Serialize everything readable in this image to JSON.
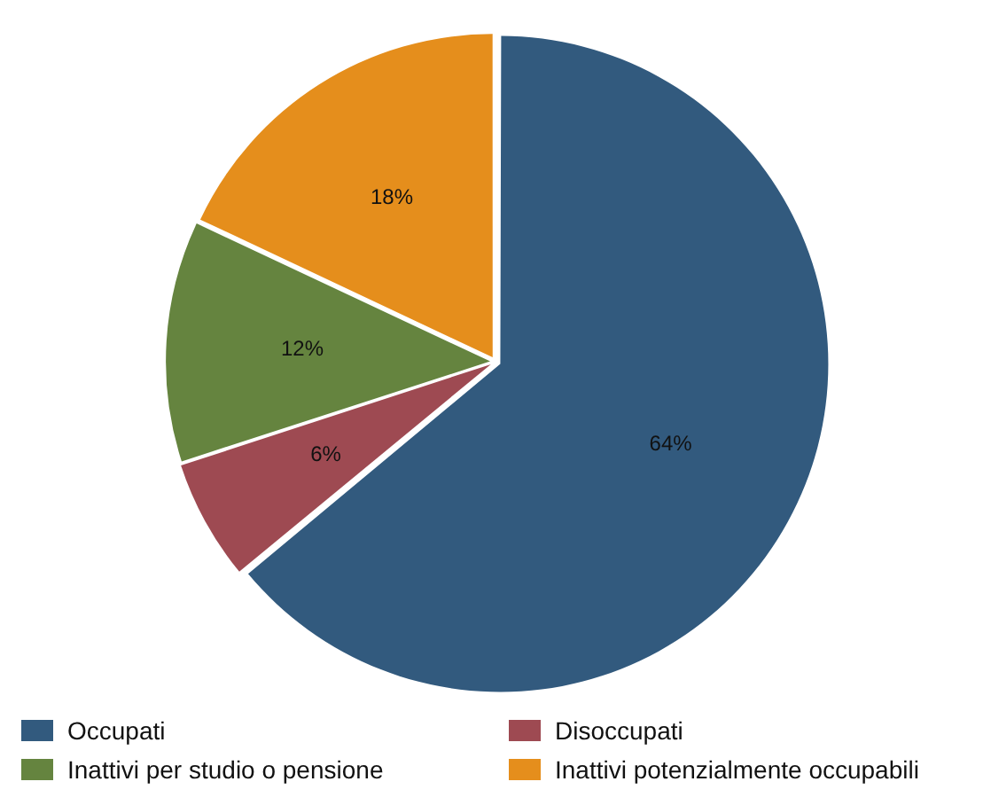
{
  "chart_data": {
    "type": "pie",
    "categories": [
      "Occupati",
      "Disoccupati",
      "Inattivi per studio o pensione",
      "Inattivi potenzialmente occupabili"
    ],
    "values": [
      64,
      6,
      12,
      18
    ],
    "colors": [
      "#325a7e",
      "#9e4a52",
      "#65843f",
      "#e58e1c"
    ],
    "value_labels": [
      "64%",
      "6%",
      "12%",
      "18%"
    ],
    "legend": "bottom"
  }
}
